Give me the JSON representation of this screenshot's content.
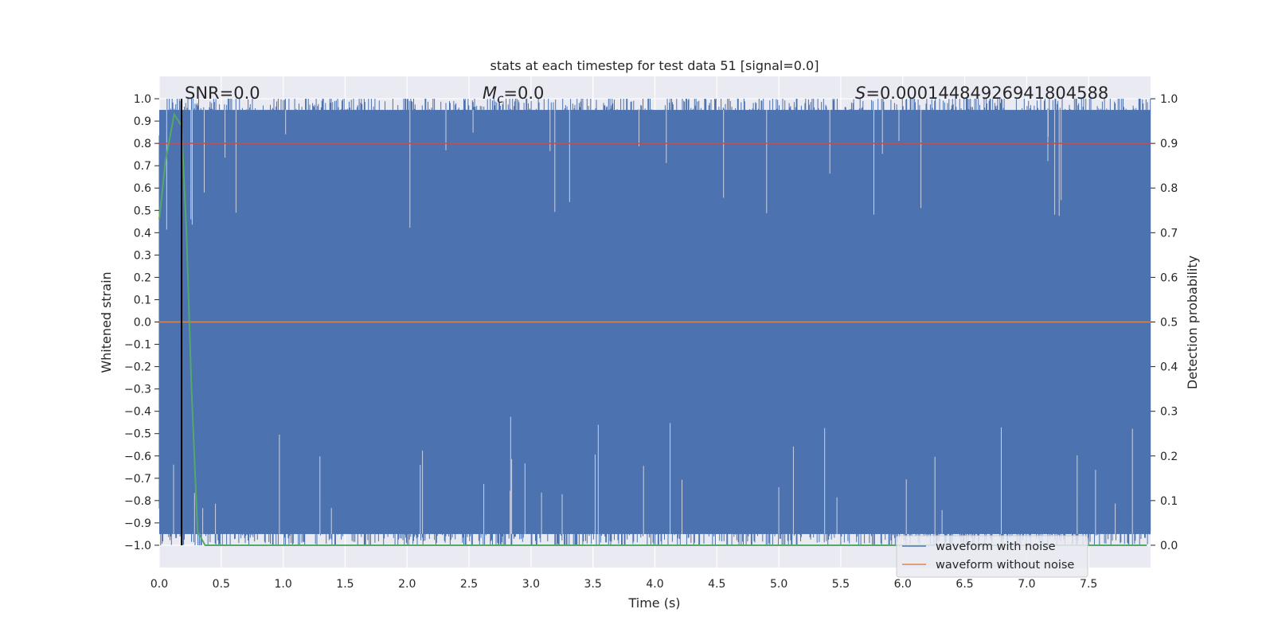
{
  "chart_data": {
    "type": "line",
    "title": "stats at each timestep for test data 51 [signal=0.0]",
    "xlabel": "Time (s)",
    "ylabel": "Whitened strain",
    "y2label": "Detection probability",
    "xlim": [
      0.0,
      8.0
    ],
    "ylim": [
      -1.1,
      1.1
    ],
    "y2lim": [
      -0.05,
      1.05
    ],
    "x_ticks": [
      0.0,
      0.5,
      1.0,
      1.5,
      2.0,
      2.5,
      3.0,
      3.5,
      4.0,
      4.5,
      5.0,
      5.5,
      6.0,
      6.5,
      7.0,
      7.5
    ],
    "x_tick_labels": [
      "0.0",
      "0.5",
      "1.0",
      "1.5",
      "2.0",
      "2.5",
      "3.0",
      "3.5",
      "4.0",
      "4.5",
      "5.0",
      "5.5",
      "6.0",
      "6.5",
      "7.0",
      "7.5"
    ],
    "y_ticks": [
      1.0,
      0.9,
      0.8,
      0.7,
      0.6,
      0.5,
      0.4,
      0.3,
      0.2,
      0.1,
      0.0,
      -0.1,
      -0.2,
      -0.3,
      -0.4,
      -0.5,
      -0.6,
      -0.7,
      -0.8,
      -0.9,
      -1.0
    ],
    "y_tick_labels": [
      "1.0",
      "0.9",
      "0.8",
      "0.7",
      "0.6",
      "0.5",
      "0.4",
      "0.3",
      "0.2",
      "0.1",
      "0.0",
      "−0.1",
      "−0.2",
      "−0.3",
      "−0.4",
      "−0.5",
      "−0.6",
      "−0.7",
      "−0.8",
      "−0.9",
      "−1.0"
    ],
    "y2_ticks": [
      1.0,
      0.9,
      0.8,
      0.7,
      0.6,
      0.5,
      0.4,
      0.3,
      0.2,
      0.1,
      0.0
    ],
    "y2_tick_labels": [
      "1.0",
      "0.9",
      "0.8",
      "0.7",
      "0.6",
      "0.5",
      "0.4",
      "0.3",
      "0.2",
      "0.1",
      "0.0"
    ],
    "grid": true,
    "legend_position": "lower-right",
    "annotations": {
      "snr": "SNR=0.0",
      "mc_symbol": "M",
      "mc_sub": "c",
      "mc_value": "=0.0",
      "s_symbol": "S",
      "s_value": "=0.00014484926941804588"
    },
    "marker_line_x": 0.18,
    "series": [
      {
        "name": "waveform with noise",
        "color": "#4c72b0",
        "description": "whitened noisy strain oscillating between about -1.0 and 1.0 across the full 0-8 s window",
        "envelope_upper_approx": 0.95,
        "envelope_lower_approx": -0.95
      },
      {
        "name": "waveform without noise",
        "color": "#dd8452",
        "values_constant": 0.0
      },
      {
        "name": "detection probability",
        "color": "#55a868",
        "axis": "right",
        "x": [
          0.0,
          0.05,
          0.12,
          0.18,
          0.22,
          0.26,
          0.31,
          0.37,
          0.5,
          1.0,
          2.0,
          3.0,
          4.0,
          5.0,
          6.0,
          7.0,
          7.97
        ],
        "y": [
          0.73,
          0.86,
          0.965,
          0.94,
          0.7,
          0.35,
          0.03,
          0.0,
          0.0,
          0.0,
          0.0,
          0.0,
          0.0,
          0.0,
          0.0,
          0.0,
          0.0
        ]
      },
      {
        "name": "threshold",
        "color": "#c44e52",
        "axis": "right",
        "values_constant": 0.9
      }
    ]
  }
}
